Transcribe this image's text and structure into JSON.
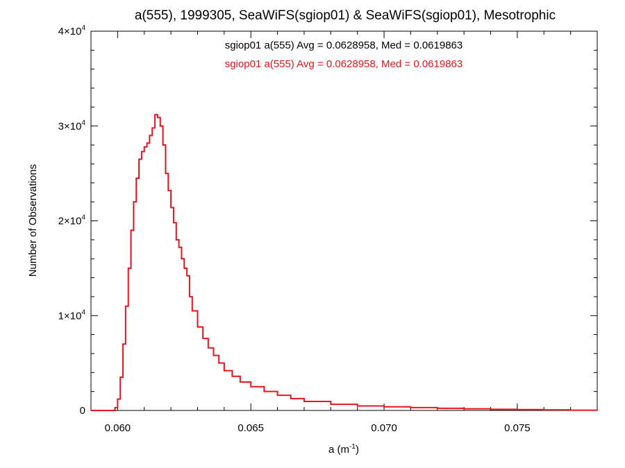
{
  "chart_data": {
    "type": "line",
    "title": "a(555), 1999305, SeaWiFS(sgiop01) & SeaWiFS(sgiop01), Mesotrophic",
    "xlabel": "a (m",
    "xlabel_sup": "-1",
    "xlabel_end": ")",
    "ylabel": "Number of Observations",
    "xlim": [
      0.059,
      0.078
    ],
    "ylim": [
      0,
      40000
    ],
    "x_ticks": [
      {
        "value": 0.06,
        "label": "0.060"
      },
      {
        "value": 0.065,
        "label": "0.065"
      },
      {
        "value": 0.07,
        "label": "0.070"
      },
      {
        "value": 0.075,
        "label": "0.075"
      }
    ],
    "y_ticks": [
      {
        "value": 0,
        "label": "0",
        "mantissa": "",
        "exp": ""
      },
      {
        "value": 10000,
        "label": "1×10⁴",
        "mantissa": "1×10",
        "exp": "4"
      },
      {
        "value": 20000,
        "label": "2×10⁴",
        "mantissa": "2×10",
        "exp": "4"
      },
      {
        "value": 30000,
        "label": "3×10⁴",
        "mantissa": "3×10",
        "exp": "4"
      },
      {
        "value": 40000,
        "label": "4×10⁴",
        "mantissa": "4×10",
        "exp": "4"
      }
    ],
    "annotations": [
      {
        "text": "sgiop01 a(555) Avg = 0.0628958, Med = 0.0619863",
        "color": "#000000"
      },
      {
        "text": "sgiop01 a(555) Avg = 0.0628958, Med = 0.0619863",
        "color": "#e8141b"
      }
    ],
    "series": [
      {
        "name": "sgiop01 a(555)",
        "color": "#e8141b",
        "step": true,
        "x": [
          0.059,
          0.0598,
          0.0599,
          0.06,
          0.0601,
          0.0602,
          0.0603,
          0.0604,
          0.0605,
          0.0606,
          0.0607,
          0.0608,
          0.0609,
          0.061,
          0.0611,
          0.0612,
          0.0613,
          0.0614,
          0.0615,
          0.0616,
          0.0617,
          0.0618,
          0.0619,
          0.062,
          0.0621,
          0.0622,
          0.0623,
          0.0624,
          0.0625,
          0.0626,
          0.0627,
          0.0628,
          0.063,
          0.0632,
          0.0634,
          0.0636,
          0.0638,
          0.064,
          0.0643,
          0.0646,
          0.065,
          0.0655,
          0.066,
          0.0665,
          0.067,
          0.068,
          0.069,
          0.07,
          0.071,
          0.072,
          0.073,
          0.074,
          0.075,
          0.076,
          0.077,
          0.078
        ],
        "y": [
          0,
          0,
          300,
          1200,
          3500,
          7000,
          11000,
          15000,
          19000,
          22000,
          24500,
          26500,
          27300,
          27800,
          28200,
          29000,
          29800,
          31200,
          30900,
          30000,
          28000,
          25000,
          23200,
          21400,
          19800,
          18000,
          17200,
          16000,
          15000,
          14200,
          12000,
          10500,
          8800,
          7600,
          6600,
          5800,
          5000,
          4200,
          3600,
          3000,
          2500,
          2000,
          1600,
          1250,
          950,
          650,
          480,
          380,
          300,
          230,
          170,
          120,
          90,
          60,
          30,
          10
        ]
      }
    ]
  }
}
